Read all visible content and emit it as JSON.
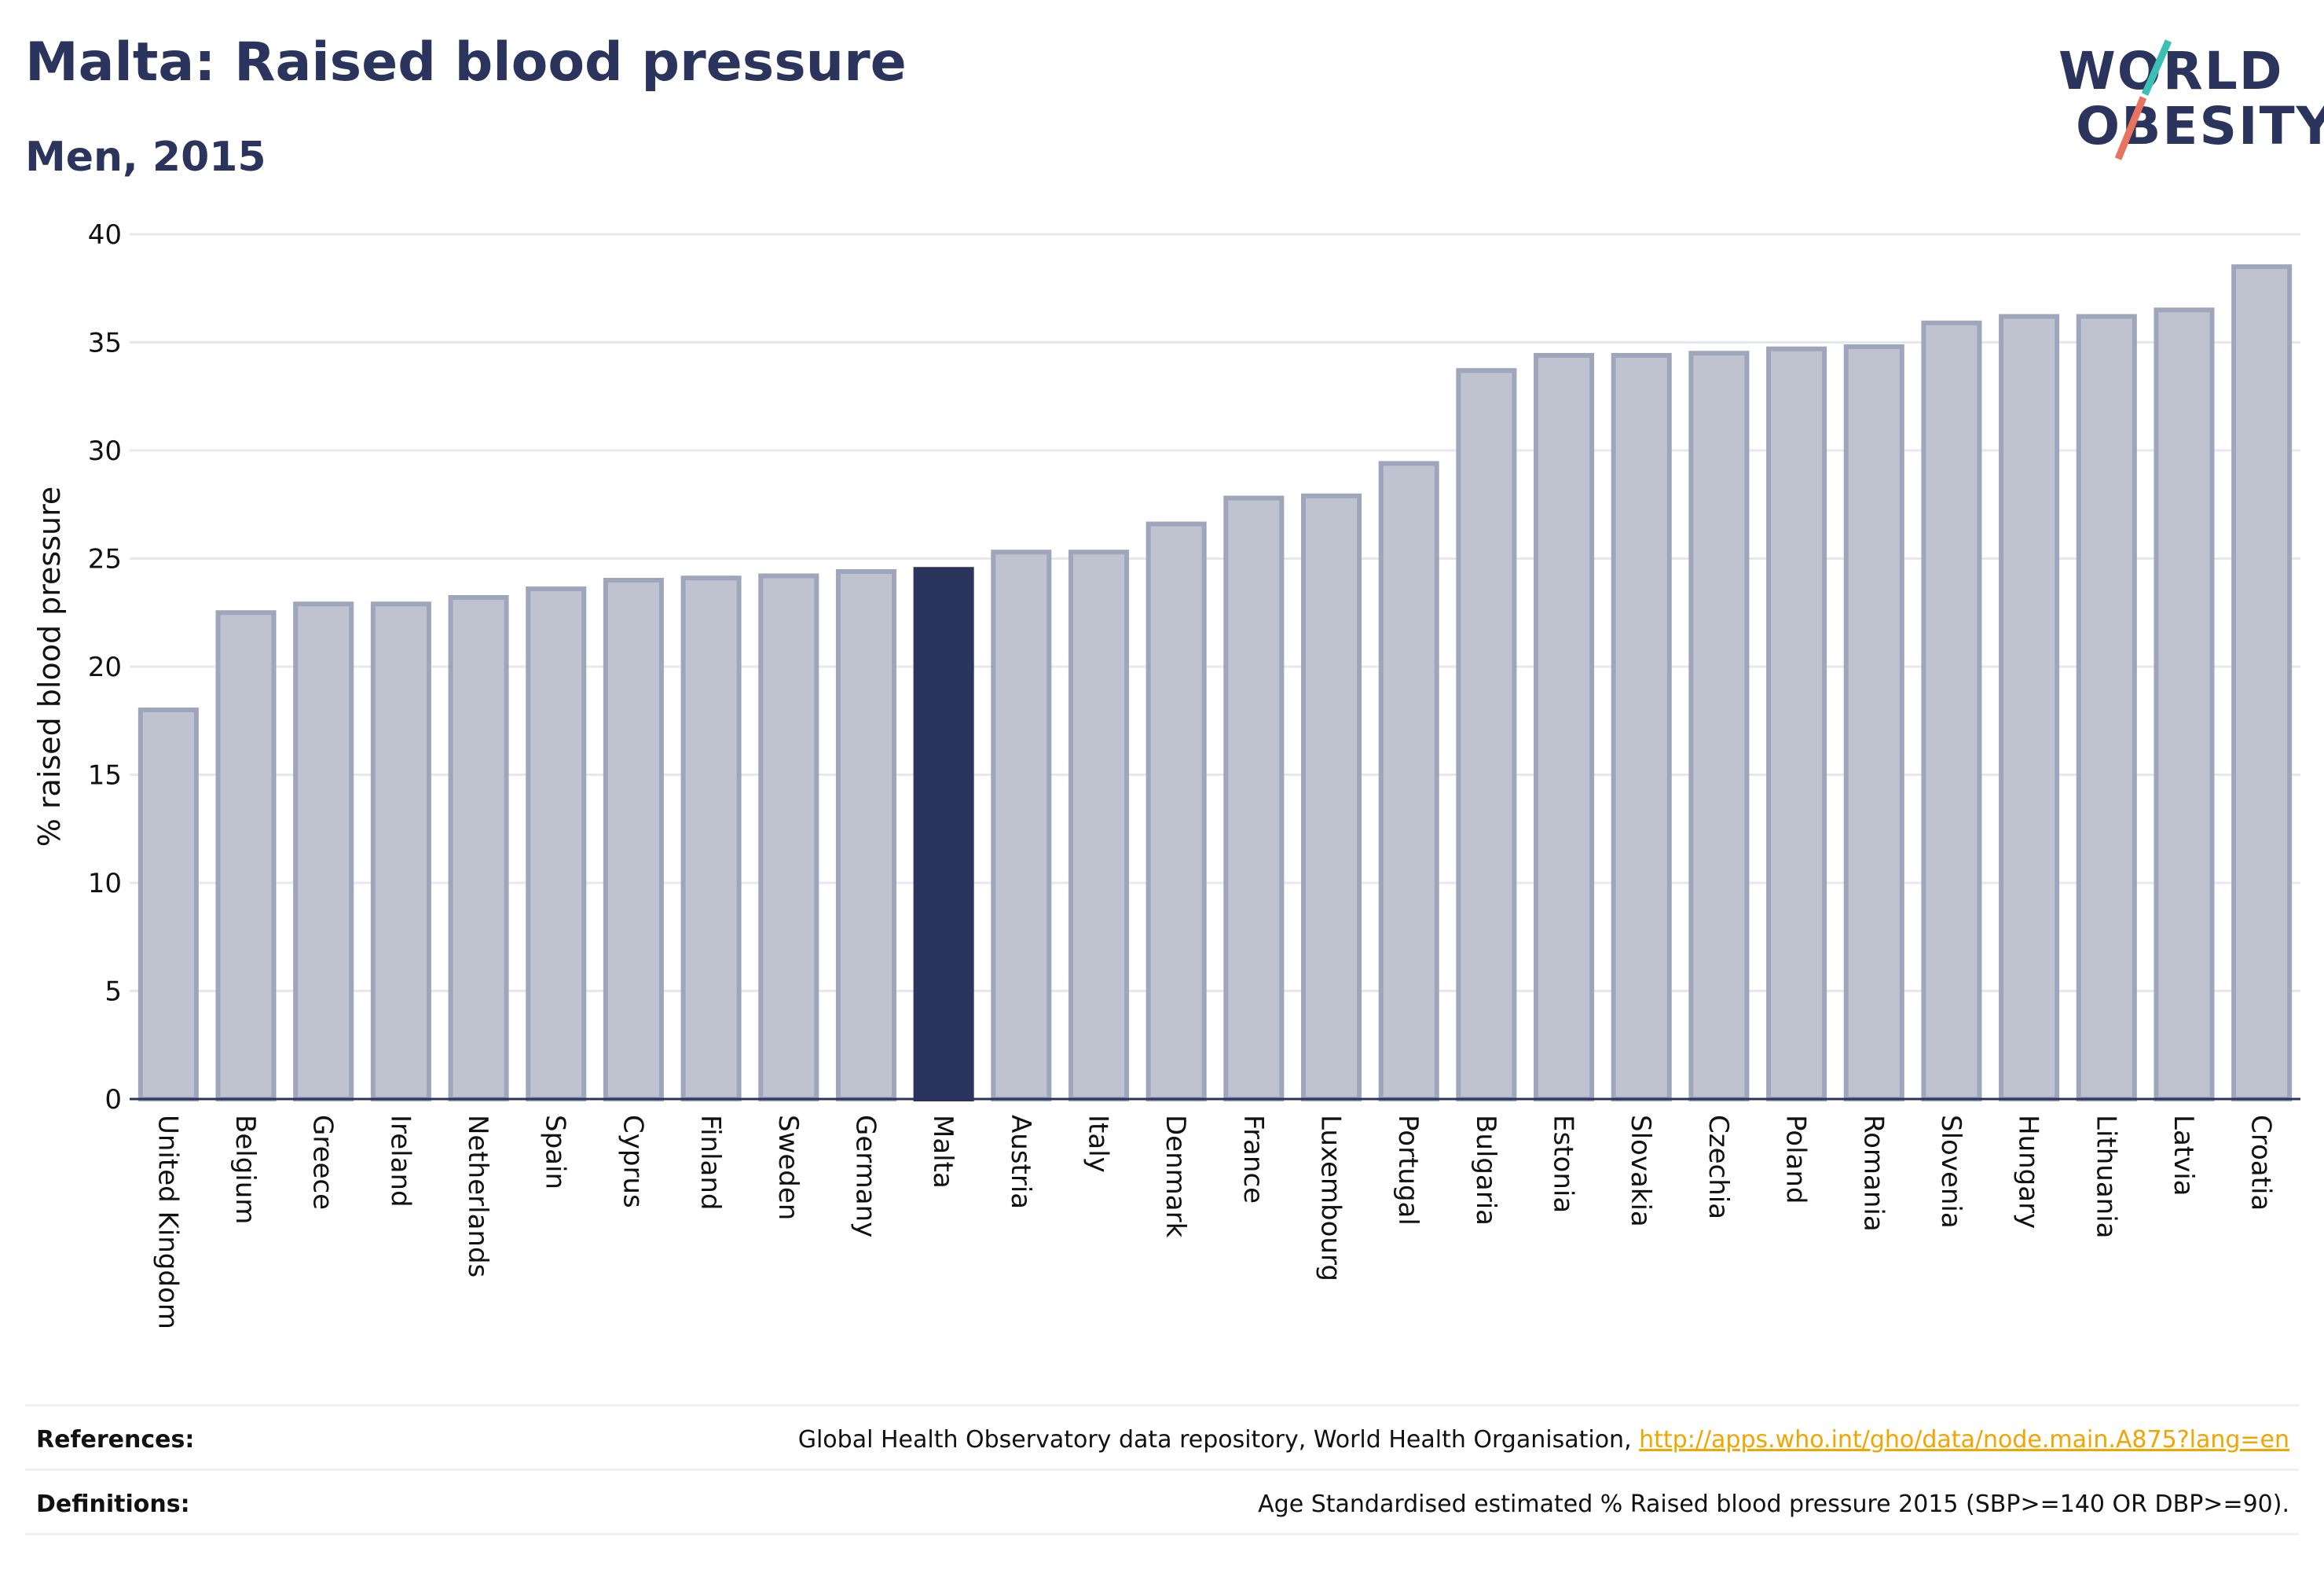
{
  "header": {
    "title": "Malta: Raised blood pressure",
    "subtitle": "Men, 2015"
  },
  "logo": {
    "line1": "WORLD",
    "line2": "OBESITY",
    "accent_teal": "#3cbfb4",
    "accent_coral": "#e8735f"
  },
  "colors": {
    "bar_default": "#bfc3d0",
    "bar_border": "#9fa5bb",
    "bar_highlight": "#2a345c",
    "grid": "#e6e8ef",
    "axis": "#2a345c"
  },
  "chart_data": {
    "type": "bar",
    "title": "Malta: Raised blood pressure",
    "subtitle": "Men, 2015",
    "ylabel": "% raised blood pressure",
    "xlabel": "",
    "ylim": [
      0,
      40
    ],
    "yticks": [
      0,
      5,
      10,
      15,
      20,
      25,
      30,
      35,
      40
    ],
    "grid": true,
    "highlight": "Malta",
    "categories": [
      "United Kingdom",
      "Belgium",
      "Greece",
      "Ireland",
      "Netherlands",
      "Spain",
      "Cyprus",
      "Finland",
      "Sweden",
      "Germany",
      "Malta",
      "Austria",
      "Italy",
      "Denmark",
      "France",
      "Luxembourg",
      "Portugal",
      "Bulgaria",
      "Estonia",
      "Slovakia",
      "Czechia",
      "Poland",
      "Romania",
      "Slovenia",
      "Hungary",
      "Lithuania",
      "Latvia",
      "Croatia"
    ],
    "values": [
      18.0,
      22.5,
      22.9,
      22.9,
      23.2,
      23.6,
      24.0,
      24.1,
      24.2,
      24.4,
      24.5,
      25.3,
      25.3,
      26.6,
      27.8,
      27.9,
      29.4,
      33.7,
      34.4,
      34.4,
      34.5,
      34.7,
      34.8,
      35.9,
      36.2,
      36.2,
      36.5,
      38.5
    ]
  },
  "footer": {
    "references_label": "References:",
    "references_text": "Global Health Observatory data repository, World Health Organisation, ",
    "references_link": "http://apps.who.int/gho/data/node.main.A875?lang=en",
    "definitions_label": "Definitions:",
    "definitions_text": "Age Standardised estimated % Raised blood pressure 2015 (SBP>=140 OR DBP>=90)."
  }
}
